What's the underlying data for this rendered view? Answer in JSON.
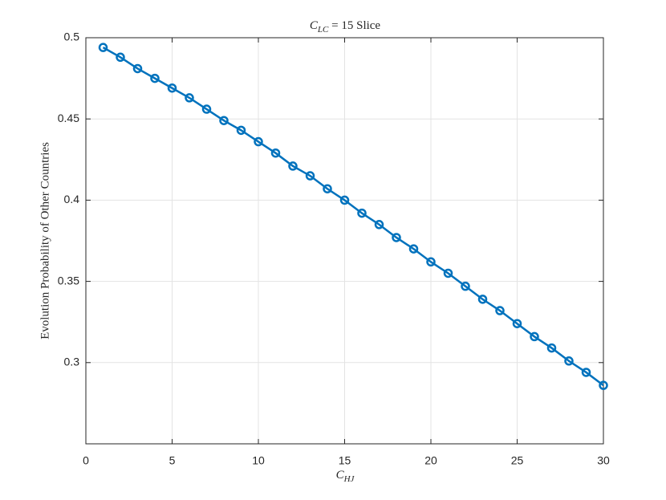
{
  "chart_data": {
    "type": "line",
    "title": {
      "symbol": "C",
      "subscript": "LC",
      "rest": " = 15 Slice"
    },
    "xlabel": {
      "symbol": "C",
      "subscript": "HJ"
    },
    "ylabel": "Evolution Probability of Other Countries",
    "x": [
      1,
      2,
      3,
      4,
      5,
      6,
      7,
      8,
      9,
      10,
      11,
      12,
      13,
      14,
      15,
      16,
      17,
      18,
      19,
      20,
      21,
      22,
      23,
      24,
      25,
      26,
      27,
      28,
      29,
      30
    ],
    "values": [
      0.494,
      0.488,
      0.481,
      0.475,
      0.469,
      0.463,
      0.456,
      0.449,
      0.443,
      0.436,
      0.429,
      0.421,
      0.415,
      0.407,
      0.4,
      0.392,
      0.385,
      0.377,
      0.37,
      0.362,
      0.355,
      0.347,
      0.339,
      0.332,
      0.324,
      0.316,
      0.309,
      0.301,
      0.294,
      0.286
    ],
    "color": "#0072bd",
    "xlim": [
      0,
      30
    ],
    "xticks": [
      0,
      5,
      10,
      15,
      20,
      25,
      30
    ],
    "ylim": [
      0.25,
      0.5
    ],
    "yticks": [
      0.3,
      0.35,
      0.4,
      0.45,
      0.5
    ],
    "grid": true
  }
}
